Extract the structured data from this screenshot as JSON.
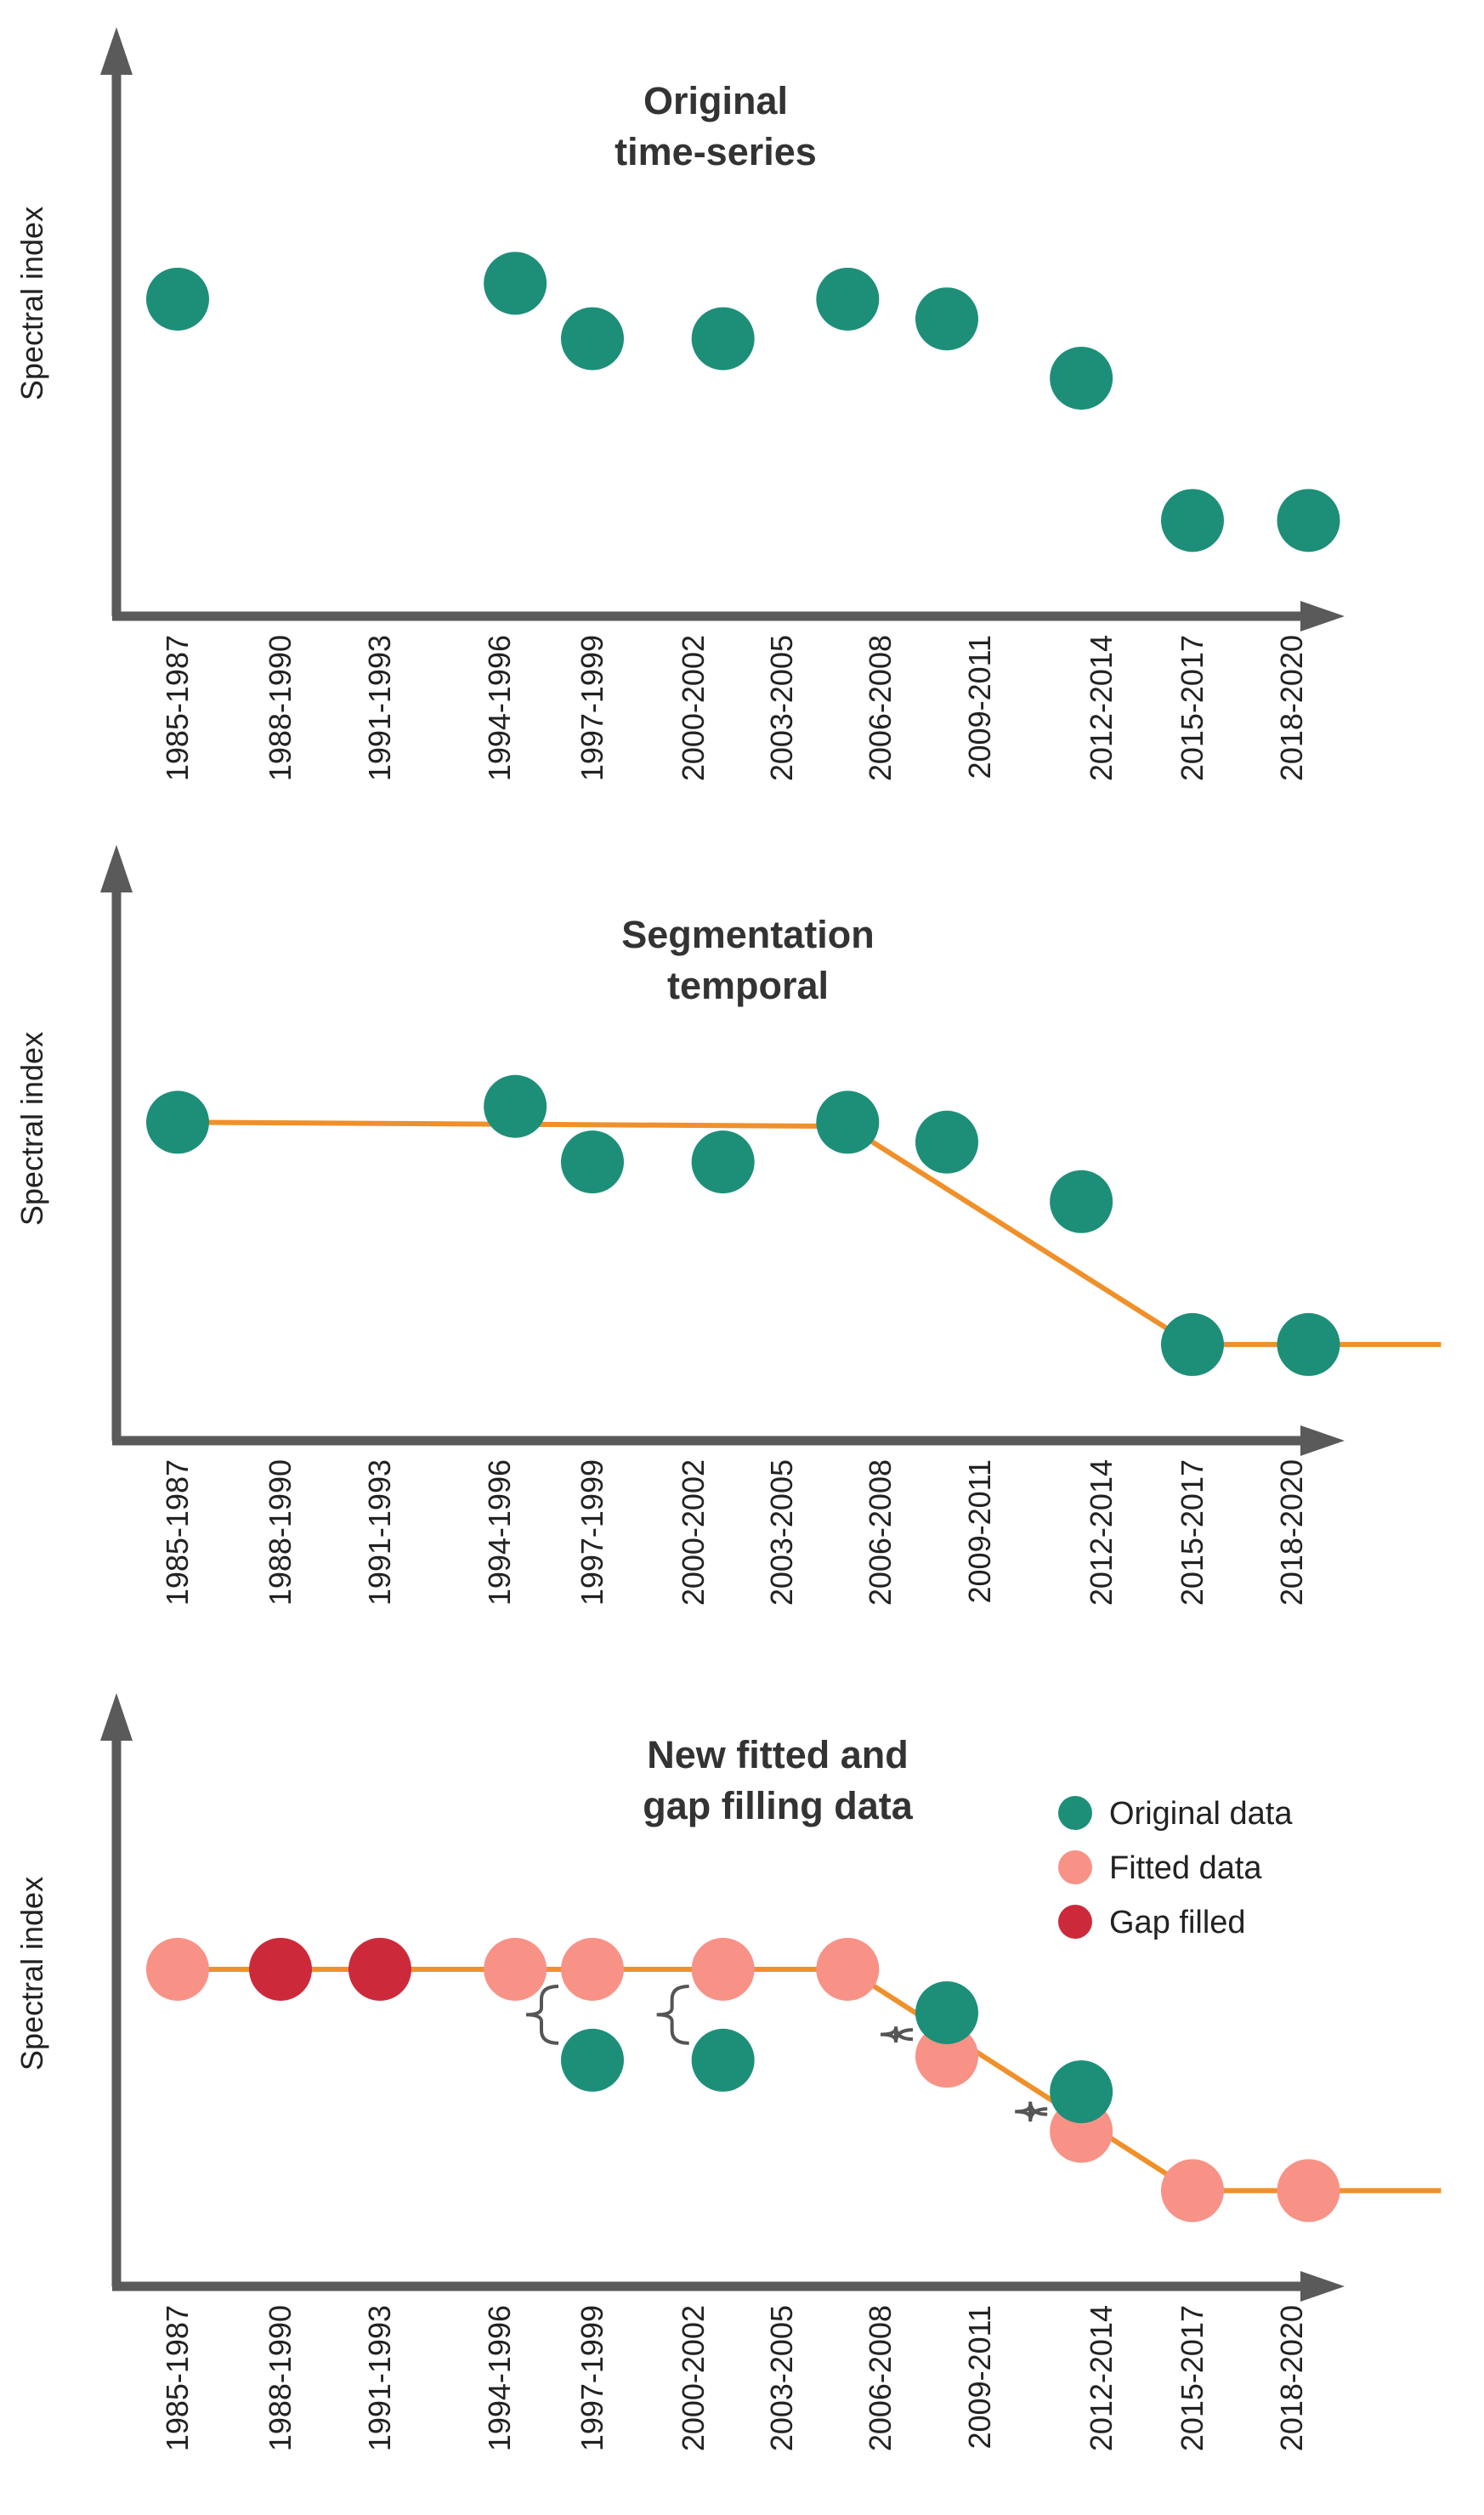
{
  "colors": {
    "axis": "#5a5a5a",
    "original": "#1d8f78",
    "fitted": "#f89286",
    "gap_filled": "#cc2a3a",
    "trend_line": "#f0902a",
    "brace": "#555555"
  },
  "chart_data": [
    {
      "type": "scatter",
      "title_lines": [
        "Original",
        "time-series"
      ],
      "ylabel": "Spectral index",
      "categories": [
        "1985-1987",
        "1988-1990",
        "1991-1993",
        "1994-1996",
        "1997-1999",
        "2000-2002",
        "2003-2005",
        "2006-2008",
        "2009-2011",
        "2012-2014",
        "2015-2017",
        "2018-2020"
      ],
      "ylim": [
        0,
        10
      ],
      "series": [
        {
          "role": "original",
          "points": [
            {
              "x": 1986,
              "y": 7.7
            },
            {
              "x": 1995.5,
              "y": 8.1
            },
            {
              "x": 1998,
              "y": 6.7
            },
            {
              "x": 2002,
              "y": 6.7
            },
            {
              "x": 2006,
              "y": 7.7
            },
            {
              "x": 2009,
              "y": 7.2
            },
            {
              "x": 2012.5,
              "y": 5.7
            },
            {
              "x": 2016,
              "y": 2.1
            },
            {
              "x": 2019.5,
              "y": 2.1
            }
          ]
        }
      ]
    },
    {
      "type": "scatter",
      "title_lines": [
        "Segmentation",
        "temporal"
      ],
      "ylabel": "Spectral index",
      "categories": [
        "1985-1987",
        "1988-1990",
        "1991-1993",
        "1994-1996",
        "1997-1999",
        "2000-2002",
        "2003-2005",
        "2006-2008",
        "2009-2011",
        "2012-2014",
        "2015-2017",
        "2018-2020"
      ],
      "ylim": [
        0,
        10
      ],
      "series": [
        {
          "role": "original",
          "points": [
            {
              "x": 1986,
              "y": 7.7
            },
            {
              "x": 1995.5,
              "y": 8.1
            },
            {
              "x": 1998,
              "y": 6.7
            },
            {
              "x": 2002,
              "y": 6.7
            },
            {
              "x": 2006,
              "y": 7.7
            },
            {
              "x": 2009,
              "y": 7.2
            },
            {
              "x": 2012.5,
              "y": 5.7
            },
            {
              "x": 2016,
              "y": 2.1
            },
            {
              "x": 2019.5,
              "y": 2.1
            }
          ]
        }
      ],
      "trend_line": [
        {
          "x": 1986,
          "y": 7.7
        },
        {
          "x": 2006,
          "y": 7.6
        },
        {
          "x": 2016,
          "y": 2.1
        },
        {
          "x": 2023.5,
          "y": 2.1
        }
      ]
    },
    {
      "type": "scatter",
      "title_lines": [
        "New fitted and",
        "gap filling data"
      ],
      "ylabel": "Spectral index",
      "categories": [
        "1985-1987",
        "1988-1990",
        "1991-1993",
        "1994-1996",
        "1997-1999",
        "2000-2002",
        "2003-2005",
        "2006-2008",
        "2009-2011",
        "2012-2014",
        "2015-2017",
        "2018-2020"
      ],
      "ylim": [
        0,
        10
      ],
      "legend": {
        "placement": "top-right",
        "entries": [
          {
            "role": "original",
            "label": "Original data"
          },
          {
            "role": "fitted",
            "label": "Fitted data"
          },
          {
            "role": "gap_filled",
            "label": "Gap filled"
          }
        ]
      },
      "series": [
        {
          "role": "fitted",
          "points": [
            {
              "x": 1986,
              "y": 7.7
            },
            {
              "x": 1995.5,
              "y": 7.7
            },
            {
              "x": 1998,
              "y": 7.7
            },
            {
              "x": 2002,
              "y": 7.7
            },
            {
              "x": 2006,
              "y": 7.7
            },
            {
              "x": 2009,
              "y": 5.5
            },
            {
              "x": 2012.5,
              "y": 3.6
            },
            {
              "x": 2016,
              "y": 2.1
            },
            {
              "x": 2019.5,
              "y": 2.1
            }
          ]
        },
        {
          "role": "gap_filled",
          "points": [
            {
              "x": 1989,
              "y": 7.7
            },
            {
              "x": 1992,
              "y": 7.7
            }
          ]
        },
        {
          "role": "original",
          "points": [
            {
              "x": 1998,
              "y": 5.4
            },
            {
              "x": 2002,
              "y": 5.4
            },
            {
              "x": 2009,
              "y": 6.6
            },
            {
              "x": 2012.5,
              "y": 4.6
            }
          ]
        }
      ],
      "trend_line": [
        {
          "x": 1986,
          "y": 7.7
        },
        {
          "x": 2006,
          "y": 7.7
        },
        {
          "x": 2016,
          "y": 2.1
        },
        {
          "x": 2023.5,
          "y": 2.1
        }
      ],
      "braces": [
        {
          "x": 1998,
          "from": 7.7,
          "to": 5.4
        },
        {
          "x": 2002,
          "from": 7.7,
          "to": 5.4
        },
        {
          "x": 2009,
          "from": 6.6,
          "to": 5.5
        },
        {
          "x": 2012.5,
          "from": 4.6,
          "to": 3.6
        }
      ]
    }
  ]
}
